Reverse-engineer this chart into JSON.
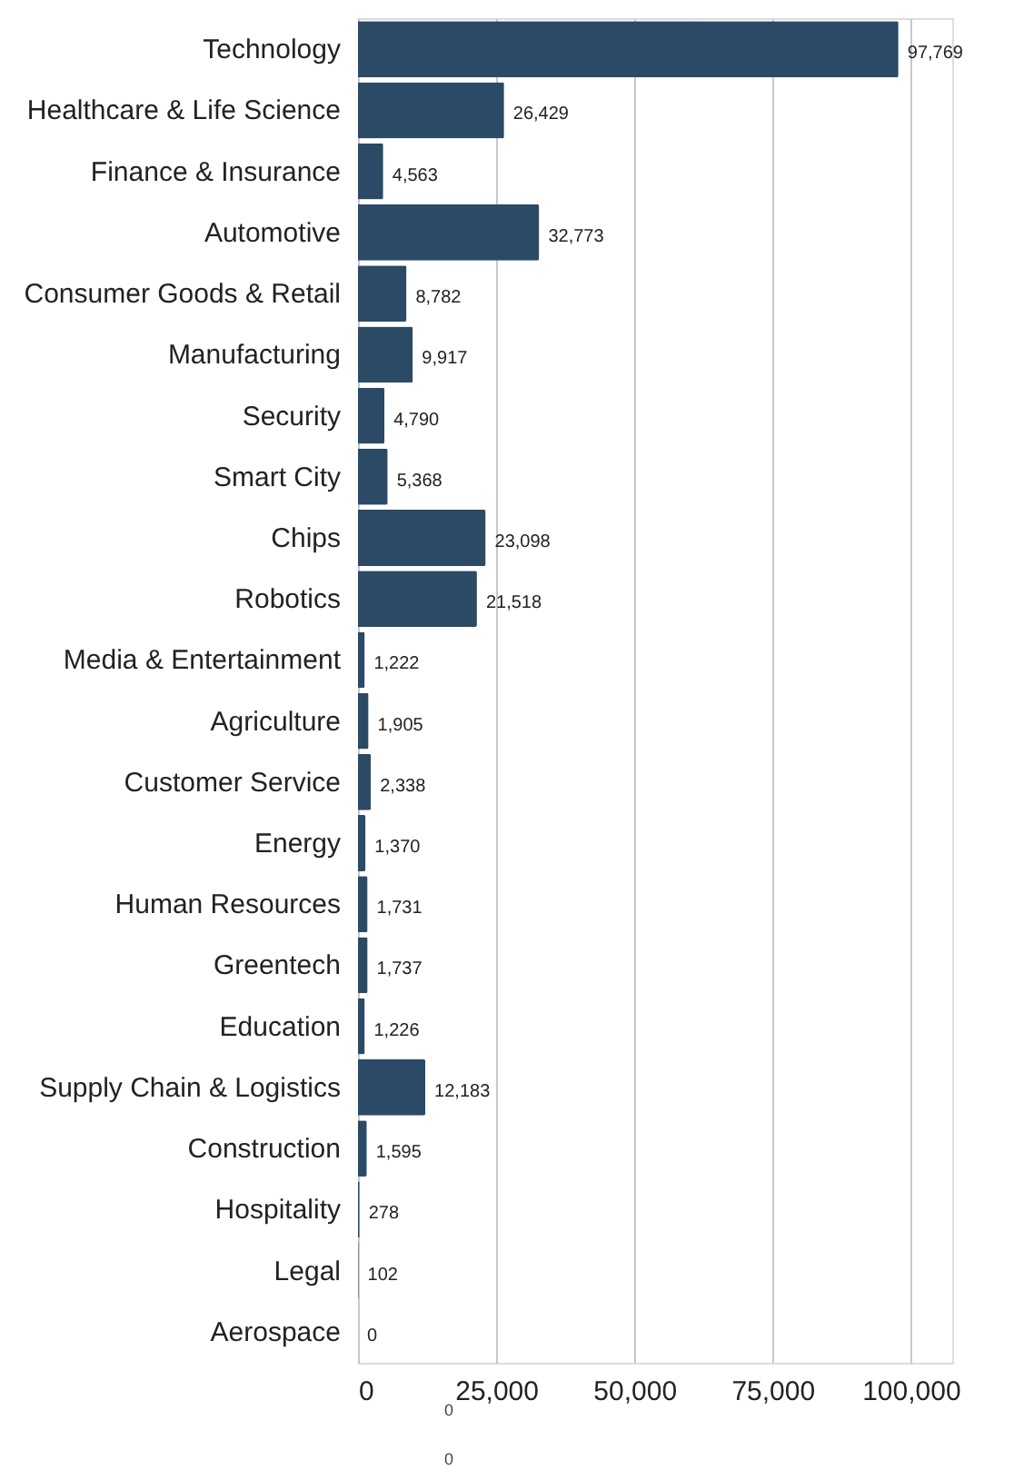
{
  "chart_data": {
    "type": "bar",
    "orientation": "horizontal",
    "categories": [
      "Technology",
      "Healthcare & Life Science",
      "Finance & Insurance",
      "Automotive",
      "Consumer Goods & Retail",
      "Manufacturing",
      "Security",
      "Smart City",
      "Chips",
      "Robotics",
      "Media & Entertainment",
      "Agriculture",
      "Customer Service",
      "Energy",
      "Human Resources",
      "Greentech",
      "Education",
      "Supply Chain & Logistics",
      "Construction",
      "Hospitality",
      "Legal",
      "Aerospace"
    ],
    "values": [
      97769,
      26429,
      4563,
      32773,
      8782,
      9917,
      4790,
      5368,
      23098,
      21518,
      1222,
      1905,
      2338,
      1370,
      1731,
      1737,
      1226,
      12183,
      1595,
      278,
      102,
      0
    ],
    "value_labels": [
      "97,769",
      "26,429",
      "4,563",
      "32,773",
      "8,782",
      "9,917",
      "4,790",
      "5,368",
      "23,098",
      "21,518",
      "1,222",
      "1,905",
      "2,338",
      "1,370",
      "1,731",
      "1,737",
      "1,226",
      "12,183",
      "1,595",
      "278",
      "102",
      "0"
    ],
    "color": "#2b4a66",
    "xlim": [
      0,
      107500
    ],
    "xticks": [
      0,
      {
        "value": 25000,
        "label": "25,000"
      },
      {
        "value": 50000,
        "label": "50,000"
      },
      {
        "value": 75000,
        "label": "75,000"
      },
      {
        "value": 100000,
        "label": "100,000"
      }
    ],
    "grid": "x",
    "annotations": [
      "0",
      "0"
    ]
  }
}
